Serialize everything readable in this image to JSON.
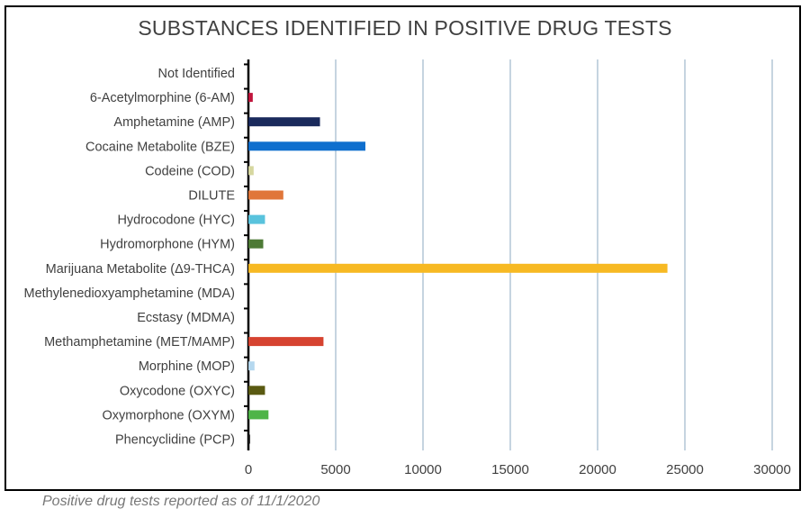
{
  "caption": "Positive drug tests reported as of 11/1/2020",
  "chart_data": {
    "type": "bar",
    "orientation": "horizontal",
    "title": "SUBSTANCES IDENTIFIED IN POSITIVE DRUG TESTS",
    "xlabel": "",
    "ylabel": "",
    "xlim": [
      0,
      30000
    ],
    "xticks": [
      0,
      5000,
      10000,
      15000,
      20000,
      25000,
      30000
    ],
    "grid": "vertical",
    "legend": "none",
    "categories": [
      "Not Identified",
      "6-Acetylmorphine (6-AM)",
      "Amphetamine (AMP)",
      "Cocaine Metabolite (BZE)",
      "Codeine (COD)",
      "DILUTE",
      "Hydrocodone (HYC)",
      "Hydromorphone (HYM)",
      "Marijuana Metabolite (Δ9-THCA)",
      "Methylenedioxyamphetamine (MDA)",
      "Ecstasy (MDMA)",
      "Methamphetamine (MET/MAMP)",
      "Morphine (MOP)",
      "Oxycodone (OXYC)",
      "Oxymorphone (OXYM)",
      "Phencyclidine (PCP)"
    ],
    "values": [
      0,
      250,
      4100,
      6700,
      300,
      2000,
      950,
      850,
      24000,
      0,
      0,
      4300,
      350,
      950,
      1150,
      100
    ],
    "colors": [
      "#000000",
      "#c0143c",
      "#1a2a5c",
      "#0f6fce",
      "#d6d79f",
      "#e0763a",
      "#59c3dd",
      "#4d7a35",
      "#f7b923",
      "#000000",
      "#000000",
      "#d64330",
      "#b5d8ef",
      "#5a5a12",
      "#4fb448",
      "#222222"
    ]
  }
}
